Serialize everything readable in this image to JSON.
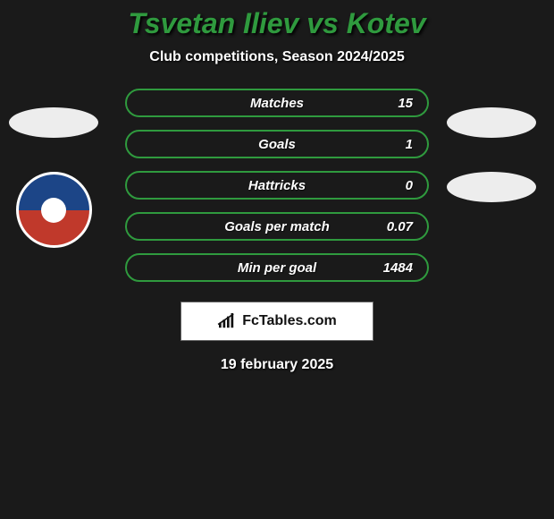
{
  "title": {
    "text": "Tsvetan Iliev vs Kotev",
    "color": "#2f9a3e"
  },
  "subtitle": "Club competitions, Season 2024/2025",
  "stats": {
    "row_border_color": "#2f9a3e",
    "row_bg_color": "#1a1a1a",
    "rows": [
      {
        "label": "Matches",
        "left": "",
        "right": "15"
      },
      {
        "label": "Goals",
        "left": "",
        "right": "1"
      },
      {
        "label": "Hattricks",
        "left": "",
        "right": "0"
      },
      {
        "label": "Goals per match",
        "left": "",
        "right": "0.07"
      },
      {
        "label": "Min per goal",
        "left": "",
        "right": "1484"
      }
    ]
  },
  "footer": {
    "brand": "FcTables.com"
  },
  "date": "19 february 2025"
}
